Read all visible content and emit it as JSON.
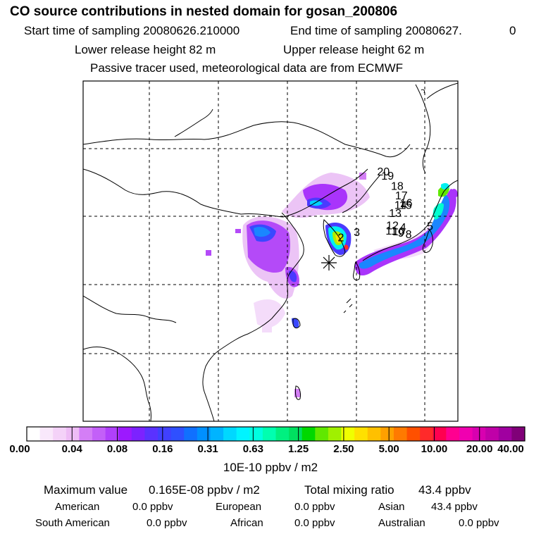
{
  "header": {
    "title": "CO  source contributions in nested domain for gosan_200806",
    "start_label": "Start time of sampling 20080626.210000",
    "end_label": "End time of sampling 20080627.",
    "end_suffix": "0",
    "lower_height": "Lower release height   82 m",
    "upper_height": "Upper release height   62 m",
    "tracer_note": "Passive tracer used, meteorological data are from ECMWF"
  },
  "map": {
    "receptor_marker": "asterisk-icon",
    "trajectory_labels": [
      {
        "label": "2",
        "lon": 127.3,
        "lat": 36.3
      },
      {
        "label": "3",
        "lon": 129.6,
        "lat": 37.1
      },
      {
        "label": "4",
        "lon": 136.3,
        "lat": 37.8
      },
      {
        "label": "8",
        "lon": 137.1,
        "lat": 36.8
      },
      {
        "label": "9",
        "lon": 136.0,
        "lat": 37.0
      },
      {
        "label": "5",
        "lon": 140.2,
        "lat": 38.0
      },
      {
        "label": "10",
        "lon": 135.2,
        "lat": 37.2
      },
      {
        "label": "11",
        "lon": 134.2,
        "lat": 37.3
      },
      {
        "label": "12",
        "lon": 134.3,
        "lat": 38.1
      },
      {
        "label": "13",
        "lon": 134.7,
        "lat": 39.9
      },
      {
        "label": "14",
        "lon": 135.5,
        "lat": 41.1
      },
      {
        "label": "15",
        "lon": 136.2,
        "lat": 41.1
      },
      {
        "label": "16",
        "lon": 136.3,
        "lat": 41.4
      },
      {
        "label": "17",
        "lon": 135.6,
        "lat": 42.5
      },
      {
        "label": "18",
        "lon": 135.0,
        "lat": 43.9
      },
      {
        "label": "19",
        "lon": 133.6,
        "lat": 45.4
      },
      {
        "label": "20",
        "lon": 133.0,
        "lat": 46.0
      }
    ]
  },
  "colorbar": {
    "colors": [
      "#ffffff",
      "#f9e8fb",
      "#f4d2f8",
      "#eebcf5",
      "#d47ef6",
      "#c360f8",
      "#b040fb",
      "#9c19fe",
      "#7c22ff",
      "#5a32ff",
      "#4040ff",
      "#2f50ff",
      "#1070ff",
      "#0090ff",
      "#00b4ff",
      "#00d8ff",
      "#00f4ff",
      "#00ffe0",
      "#00ffb0",
      "#00f080",
      "#00e060",
      "#00d800",
      "#60e800",
      "#a0f000",
      "#f0ff00",
      "#ffe000",
      "#ffc000",
      "#ffa000",
      "#ff7a00",
      "#ff5000",
      "#ff2a2a",
      "#ff0050",
      "#ff0090",
      "#f000b0",
      "#d800b0",
      "#c000a8",
      "#a000a0",
      "#800078"
    ],
    "ticks": [
      "0.00",
      "0.04",
      "0.08",
      "0.16",
      "0.31",
      "0.63",
      "1.25",
      "2.50",
      "5.00",
      "10.00",
      "20.00",
      "40.00"
    ],
    "unit": "10E-10 ppbv / m2"
  },
  "summary": {
    "max_label": "Maximum value",
    "max_value": "0.165E-08 ppbv / m2",
    "total_label": "Total mixing ratio",
    "total_value": "43.4 ppbv",
    "regions": [
      {
        "name": "American",
        "value": "0.0 ppbv"
      },
      {
        "name": "European",
        "value": "0.0 ppbv"
      },
      {
        "name": "Asian",
        "value": "43.4 ppbv"
      },
      {
        "name": "South American",
        "value": "0.0 ppbv"
      },
      {
        "name": "African",
        "value": "0.0 ppbv"
      },
      {
        "name": "Australian",
        "value": "0.0 ppbv"
      }
    ]
  }
}
